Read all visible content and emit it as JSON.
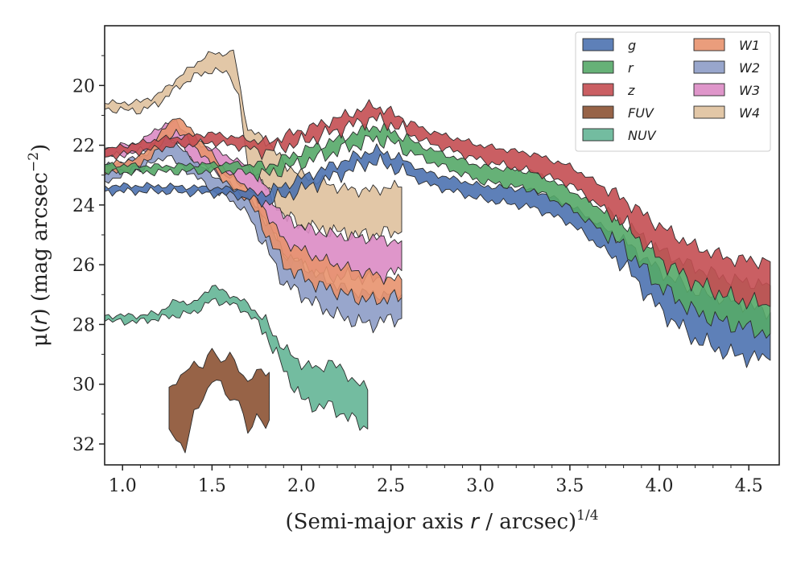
{
  "chart_data": {
    "type": "area",
    "title": "",
    "xlabel_main": "(Semi-major axis ",
    "xlabel_var": "r",
    "xlabel_unit": " / arcsec)",
    "xlabel_exp": "1/4",
    "ylabel_main": "μ(",
    "ylabel_var": "r",
    "ylabel_unit": ") (mag arcsec",
    "ylabel_exp": "−2",
    "ylabel_close": ")",
    "xlim": [
      0.9,
      4.67
    ],
    "ylim": [
      32.7,
      18.0
    ],
    "y_inverted": true,
    "x_ticks": [
      "1.0",
      "1.5",
      "2.0",
      "2.5",
      "3.0",
      "3.5",
      "4.0",
      "4.5"
    ],
    "y_ticks": [
      "20",
      "22",
      "24",
      "26",
      "28",
      "30",
      "32"
    ],
    "grid": false,
    "legend_placement": "top-right",
    "legend_columns": 2,
    "series": [
      {
        "name": "g",
        "color": "#4c72b0",
        "upper": [
          [
            0.9,
            23.35
          ],
          [
            1.2,
            23.35
          ],
          [
            1.6,
            23.45
          ],
          [
            1.8,
            23.6
          ],
          [
            2.0,
            23.1
          ],
          [
            2.2,
            22.6
          ],
          [
            2.4,
            22.15
          ],
          [
            2.5,
            22.3
          ],
          [
            2.7,
            22.9
          ],
          [
            3.0,
            23.35
          ],
          [
            3.3,
            23.5
          ],
          [
            3.5,
            24.0
          ],
          [
            3.8,
            25.2
          ],
          [
            4.0,
            26.2
          ],
          [
            4.2,
            26.9
          ],
          [
            4.4,
            27.2
          ],
          [
            4.62,
            27.6
          ]
        ],
        "lower": [
          [
            0.9,
            23.55
          ],
          [
            1.2,
            23.55
          ],
          [
            1.6,
            23.65
          ],
          [
            1.8,
            23.9
          ],
          [
            2.0,
            23.5
          ],
          [
            2.2,
            23.0
          ],
          [
            2.4,
            22.55
          ],
          [
            2.5,
            22.7
          ],
          [
            2.7,
            23.3
          ],
          [
            3.0,
            23.8
          ],
          [
            3.3,
            24.1
          ],
          [
            3.5,
            24.6
          ],
          [
            3.8,
            26.0
          ],
          [
            4.0,
            27.5
          ],
          [
            4.2,
            28.5
          ],
          [
            4.4,
            29.0
          ],
          [
            4.62,
            29.2
          ]
        ]
      },
      {
        "name": "r",
        "color": "#55a868",
        "upper": [
          [
            0.9,
            22.65
          ],
          [
            1.2,
            22.7
          ],
          [
            1.6,
            22.6
          ],
          [
            1.8,
            22.7
          ],
          [
            2.0,
            22.2
          ],
          [
            2.2,
            21.8
          ],
          [
            2.4,
            21.35
          ],
          [
            2.5,
            21.5
          ],
          [
            2.7,
            22.1
          ],
          [
            3.0,
            22.7
          ],
          [
            3.3,
            22.9
          ],
          [
            3.5,
            23.5
          ],
          [
            3.8,
            24.6
          ],
          [
            4.0,
            25.5
          ],
          [
            4.2,
            26.1
          ],
          [
            4.4,
            26.5
          ],
          [
            4.62,
            26.7
          ]
        ],
        "lower": [
          [
            0.9,
            22.9
          ],
          [
            1.2,
            22.9
          ],
          [
            1.6,
            22.85
          ],
          [
            1.8,
            23.0
          ],
          [
            2.0,
            22.6
          ],
          [
            2.2,
            22.2
          ],
          [
            2.4,
            21.8
          ],
          [
            2.5,
            21.9
          ],
          [
            2.7,
            22.5
          ],
          [
            3.0,
            23.2
          ],
          [
            3.3,
            23.5
          ],
          [
            3.5,
            24.1
          ],
          [
            3.8,
            25.4
          ],
          [
            4.0,
            26.7
          ],
          [
            4.2,
            27.6
          ],
          [
            4.4,
            28.0
          ],
          [
            4.62,
            28.3
          ]
        ]
      },
      {
        "name": "z",
        "color": "#c44e52",
        "upper": [
          [
            0.9,
            22.15
          ],
          [
            1.2,
            21.8
          ],
          [
            1.5,
            21.6
          ],
          [
            1.8,
            21.9
          ],
          [
            2.0,
            21.5
          ],
          [
            2.2,
            21.1
          ],
          [
            2.4,
            20.65
          ],
          [
            2.5,
            20.9
          ],
          [
            2.7,
            21.5
          ],
          [
            3.0,
            22.0
          ],
          [
            3.3,
            22.3
          ],
          [
            3.5,
            22.7
          ],
          [
            3.8,
            23.8
          ],
          [
            4.0,
            24.7
          ],
          [
            4.2,
            25.4
          ],
          [
            4.4,
            25.8
          ],
          [
            4.62,
            25.9
          ]
        ],
        "lower": [
          [
            0.9,
            22.4
          ],
          [
            1.2,
            22.1
          ],
          [
            1.5,
            21.9
          ],
          [
            1.8,
            22.2
          ],
          [
            2.0,
            21.9
          ],
          [
            2.2,
            21.5
          ],
          [
            2.4,
            21.1
          ],
          [
            2.5,
            21.3
          ],
          [
            2.7,
            21.9
          ],
          [
            3.0,
            22.5
          ],
          [
            3.3,
            22.9
          ],
          [
            3.5,
            23.3
          ],
          [
            3.8,
            24.6
          ],
          [
            4.0,
            25.8
          ],
          [
            4.2,
            26.6
          ],
          [
            4.4,
            27.1
          ],
          [
            4.62,
            27.4
          ]
        ]
      },
      {
        "name": "FUV",
        "color": "#8c5233",
        "upper": [
          [
            1.26,
            30.1
          ],
          [
            1.3,
            30.0
          ],
          [
            1.35,
            29.5
          ],
          [
            1.4,
            29.3
          ],
          [
            1.45,
            29.5
          ],
          [
            1.5,
            28.7
          ],
          [
            1.55,
            29.3
          ],
          [
            1.6,
            29.0
          ],
          [
            1.65,
            29.5
          ],
          [
            1.7,
            29.9
          ],
          [
            1.75,
            29.6
          ],
          [
            1.8,
            29.6
          ],
          [
            1.82,
            29.6
          ]
        ],
        "lower": [
          [
            1.26,
            31.5
          ],
          [
            1.3,
            31.8
          ],
          [
            1.35,
            32.2
          ],
          [
            1.4,
            31.0
          ],
          [
            1.45,
            30.5
          ],
          [
            1.5,
            29.8
          ],
          [
            1.55,
            30.0
          ],
          [
            1.6,
            30.6
          ],
          [
            1.65,
            30.4
          ],
          [
            1.7,
            31.7
          ],
          [
            1.75,
            31.1
          ],
          [
            1.8,
            31.2
          ],
          [
            1.82,
            31.2
          ]
        ]
      },
      {
        "name": "NUV",
        "color": "#64b596",
        "upper": [
          [
            0.9,
            27.7
          ],
          [
            1.1,
            27.7
          ],
          [
            1.2,
            27.6
          ],
          [
            1.3,
            27.2
          ],
          [
            1.4,
            27.3
          ],
          [
            1.5,
            26.7
          ],
          [
            1.6,
            27.0
          ],
          [
            1.7,
            27.3
          ],
          [
            1.8,
            27.9
          ],
          [
            1.9,
            28.8
          ],
          [
            2.0,
            29.3
          ],
          [
            2.1,
            29.5
          ],
          [
            2.15,
            29.2
          ],
          [
            2.37,
            30.2
          ]
        ],
        "lower": [
          [
            0.9,
            27.9
          ],
          [
            1.1,
            27.9
          ],
          [
            1.2,
            27.8
          ],
          [
            1.3,
            27.7
          ],
          [
            1.4,
            27.6
          ],
          [
            1.5,
            27.2
          ],
          [
            1.6,
            27.3
          ],
          [
            1.7,
            27.6
          ],
          [
            1.8,
            28.3
          ],
          [
            1.9,
            29.5
          ],
          [
            2.0,
            30.5
          ],
          [
            2.1,
            30.8
          ],
          [
            2.15,
            30.7
          ],
          [
            2.37,
            31.5
          ]
        ]
      },
      {
        "name": "W1",
        "color": "#e8926e",
        "upper": [
          [
            0.9,
            22.7
          ],
          [
            1.1,
            22.4
          ],
          [
            1.2,
            21.7
          ],
          [
            1.3,
            21.0
          ],
          [
            1.4,
            21.6
          ],
          [
            1.5,
            22.3
          ],
          [
            1.6,
            23.0
          ],
          [
            1.7,
            23.4
          ],
          [
            1.8,
            24.2
          ],
          [
            1.9,
            25.2
          ],
          [
            2.0,
            25.5
          ],
          [
            2.1,
            25.8
          ],
          [
            2.2,
            26.0
          ],
          [
            2.3,
            26.2
          ],
          [
            2.4,
            26.3
          ],
          [
            2.5,
            26.5
          ],
          [
            2.56,
            26.5
          ]
        ],
        "lower": [
          [
            0.9,
            23.0
          ],
          [
            1.1,
            22.7
          ],
          [
            1.2,
            22.1
          ],
          [
            1.3,
            21.5
          ],
          [
            1.4,
            22.0
          ],
          [
            1.5,
            22.7
          ],
          [
            1.6,
            23.4
          ],
          [
            1.7,
            23.8
          ],
          [
            1.8,
            24.9
          ],
          [
            1.9,
            26.0
          ],
          [
            2.0,
            26.4
          ],
          [
            2.1,
            26.7
          ],
          [
            2.2,
            26.9
          ],
          [
            2.3,
            27.1
          ],
          [
            2.4,
            27.2
          ],
          [
            2.5,
            27.1
          ],
          [
            2.56,
            27.1
          ]
        ]
      },
      {
        "name": "W2",
        "color": "#8d9cc7",
        "upper": [
          [
            0.9,
            22.7
          ],
          [
            1.1,
            22.4
          ],
          [
            1.2,
            22.0
          ],
          [
            1.25,
            21.6
          ],
          [
            1.3,
            22.0
          ],
          [
            1.4,
            22.5
          ],
          [
            1.5,
            23.0
          ],
          [
            1.6,
            23.3
          ],
          [
            1.7,
            23.7
          ],
          [
            1.8,
            24.5
          ],
          [
            1.9,
            25.6
          ],
          [
            2.0,
            26.0
          ],
          [
            2.1,
            26.4
          ],
          [
            2.2,
            26.7
          ],
          [
            2.3,
            26.9
          ],
          [
            2.4,
            27.0
          ],
          [
            2.5,
            27.0
          ],
          [
            2.56,
            27.0
          ]
        ],
        "lower": [
          [
            0.9,
            23.2
          ],
          [
            1.1,
            22.8
          ],
          [
            1.2,
            22.5
          ],
          [
            1.25,
            22.3
          ],
          [
            1.3,
            22.6
          ],
          [
            1.4,
            23.0
          ],
          [
            1.5,
            23.5
          ],
          [
            1.6,
            23.8
          ],
          [
            1.7,
            24.3
          ],
          [
            1.8,
            25.4
          ],
          [
            1.9,
            26.6
          ],
          [
            2.0,
            27.0
          ],
          [
            2.1,
            27.4
          ],
          [
            2.2,
            27.7
          ],
          [
            2.3,
            27.9
          ],
          [
            2.4,
            28.0
          ],
          [
            2.5,
            27.8
          ],
          [
            2.56,
            27.8
          ]
        ]
      },
      {
        "name": "W3",
        "color": "#dc8bc4",
        "upper": [
          [
            0.9,
            22.1
          ],
          [
            1.1,
            21.9
          ],
          [
            1.2,
            21.4
          ],
          [
            1.3,
            21.2
          ],
          [
            1.4,
            21.9
          ],
          [
            1.5,
            22.1
          ],
          [
            1.6,
            22.4
          ],
          [
            1.7,
            22.7
          ],
          [
            1.8,
            23.4
          ],
          [
            1.9,
            24.4
          ],
          [
            2.0,
            24.7
          ],
          [
            2.1,
            24.9
          ],
          [
            2.2,
            25.0
          ],
          [
            2.3,
            25.1
          ],
          [
            2.4,
            25.1
          ],
          [
            2.5,
            25.2
          ],
          [
            2.56,
            25.2
          ]
        ],
        "lower": [
          [
            0.9,
            22.4
          ],
          [
            1.1,
            22.2
          ],
          [
            1.2,
            22.0
          ],
          [
            1.3,
            21.8
          ],
          [
            1.4,
            22.6
          ],
          [
            1.5,
            22.8
          ],
          [
            1.6,
            23.1
          ],
          [
            1.7,
            23.4
          ],
          [
            1.8,
            24.5
          ],
          [
            1.9,
            25.7
          ],
          [
            2.0,
            26.0
          ],
          [
            2.1,
            26.3
          ],
          [
            2.2,
            26.4
          ],
          [
            2.3,
            26.4
          ],
          [
            2.4,
            26.5
          ],
          [
            2.5,
            26.3
          ],
          [
            2.56,
            26.2
          ]
        ]
      },
      {
        "name": "W4",
        "color": "#dfc19d",
        "upper": [
          [
            0.9,
            20.6
          ],
          [
            1.1,
            20.55
          ],
          [
            1.2,
            20.3
          ],
          [
            1.3,
            19.8
          ],
          [
            1.4,
            19.3
          ],
          [
            1.5,
            18.9
          ],
          [
            1.6,
            18.95
          ],
          [
            1.62,
            18.8
          ],
          [
            1.7,
            21.5
          ],
          [
            1.8,
            21.8
          ],
          [
            1.9,
            22.6
          ],
          [
            2.0,
            23.0
          ],
          [
            2.1,
            23.2
          ],
          [
            2.2,
            23.4
          ],
          [
            2.3,
            23.5
          ],
          [
            2.4,
            23.5
          ],
          [
            2.5,
            23.4
          ],
          [
            2.56,
            23.4
          ]
        ],
        "lower": [
          [
            0.9,
            20.8
          ],
          [
            1.1,
            20.85
          ],
          [
            1.2,
            20.6
          ],
          [
            1.3,
            20.1
          ],
          [
            1.4,
            19.7
          ],
          [
            1.5,
            19.5
          ],
          [
            1.6,
            19.6
          ],
          [
            1.65,
            20.4
          ],
          [
            1.7,
            22.7
          ],
          [
            1.8,
            23.4
          ],
          [
            1.9,
            24.3
          ],
          [
            2.0,
            24.7
          ],
          [
            2.1,
            24.8
          ],
          [
            2.2,
            24.9
          ],
          [
            2.3,
            25.0
          ],
          [
            2.4,
            25.0
          ],
          [
            2.5,
            24.9
          ],
          [
            2.56,
            24.9
          ]
        ]
      }
    ]
  }
}
